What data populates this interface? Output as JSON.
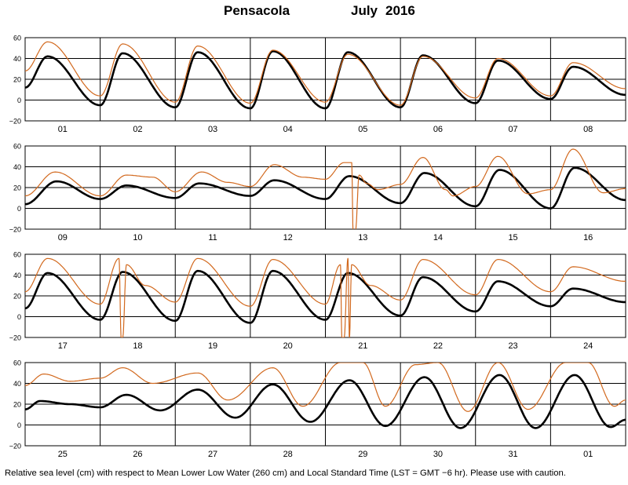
{
  "title": {
    "station": "Pensacola",
    "month": "July",
    "year": "2016"
  },
  "footnote": "Relative sea level (cm) with respect to Mean Lower Low Water (260 cm) and Local Standard Time (LST = GMT −6 hr). Please use with caution.",
  "colors": {
    "observed": "#d2691e",
    "predicted": "#000000",
    "grid": "#000000"
  },
  "chart_data": [
    {
      "type": "line",
      "days": [
        "01",
        "02",
        "03",
        "04",
        "05",
        "06",
        "07",
        "08"
      ],
      "yticks": [
        "60",
        "40",
        "20",
        "0",
        "−20"
      ],
      "ylim": [
        -20,
        60
      ],
      "series": [
        {
          "key": "predicted",
          "x": [
            0,
            0.3,
            1,
            1.3,
            2,
            2.3,
            3,
            3.3,
            4,
            4.3,
            5,
            5.3,
            6,
            6.3,
            7,
            7.3,
            8
          ],
          "values": [
            12,
            42,
            -5,
            45,
            -7,
            46,
            -8,
            47,
            -8,
            46,
            -7,
            43,
            -3,
            38,
            1,
            32,
            5
          ]
        },
        {
          "key": "observed",
          "x": [
            0,
            0.3,
            1,
            1.3,
            2,
            2.3,
            3,
            3.3,
            4,
            4.3,
            5,
            5.3,
            6,
            6.3,
            7,
            7.3,
            8
          ],
          "values": [
            28,
            56,
            4,
            54,
            -2,
            52,
            -3,
            48,
            -2,
            44,
            -5,
            42,
            2,
            40,
            4,
            36,
            11
          ]
        }
      ]
    },
    {
      "type": "line",
      "days": [
        "09",
        "10",
        "11",
        "12",
        "13",
        "14",
        "15",
        "16"
      ],
      "yticks": [
        "60",
        "40",
        "20",
        "0",
        "−20"
      ],
      "ylim": [
        -20,
        60
      ],
      "series": [
        {
          "key": "predicted",
          "x": [
            0,
            0.42,
            1,
            1.35,
            2,
            2.32,
            3,
            3.32,
            4,
            4.32,
            5,
            5.32,
            6,
            6.32,
            7,
            7.32,
            8
          ],
          "values": [
            4,
            26,
            9,
            22,
            10,
            24,
            12,
            27,
            9,
            31,
            5,
            34,
            2,
            37,
            0,
            39,
            8
          ]
        },
        {
          "key": "observed",
          "x": [
            0,
            0.4,
            1,
            1.35,
            1.7,
            2,
            2.35,
            2.7,
            3,
            3.32,
            3.7,
            4,
            4.25,
            4.35,
            4.37,
            4.4,
            4.45,
            4.55,
            4.7,
            5,
            5.3,
            5.6,
            5.7,
            6,
            6.3,
            6.7,
            7,
            7.3,
            7.7,
            8
          ],
          "values": [
            12,
            35,
            12,
            32,
            30,
            16,
            35,
            25,
            21,
            42,
            30,
            28,
            44,
            44,
            -22,
            -22,
            32,
            24,
            18,
            23,
            49,
            18,
            12,
            21,
            50,
            14,
            18,
            57,
            15,
            19
          ]
        }
      ]
    },
    {
      "type": "line",
      "days": [
        "17",
        "18",
        "19",
        "20",
        "21",
        "22",
        "23",
        "24"
      ],
      "yticks": [
        "60",
        "40",
        "20",
        "0",
        "−20"
      ],
      "ylim": [
        -20,
        60
      ],
      "series": [
        {
          "key": "predicted",
          "x": [
            0,
            0.3,
            1,
            1.3,
            2,
            2.3,
            3,
            3.3,
            4,
            4.3,
            5,
            5.3,
            6,
            6.3,
            7,
            7.3,
            8
          ],
          "values": [
            8,
            42,
            -3,
            43,
            -4,
            44,
            -6,
            44,
            -3,
            42,
            1,
            38,
            5,
            34,
            10,
            27,
            14
          ]
        },
        {
          "key": "observed",
          "x": [
            0,
            0.3,
            1,
            1.25,
            1.28,
            1.3,
            1.35,
            1.6,
            2,
            2.3,
            3,
            3.3,
            4,
            4.2,
            4.22,
            4.25,
            4.3,
            4.32,
            4.35,
            4.6,
            5,
            5.3,
            6,
            6.3,
            7,
            7.3,
            8
          ],
          "values": [
            24,
            56,
            12,
            56,
            -20,
            -20,
            50,
            30,
            14,
            56,
            10,
            55,
            12,
            50,
            -20,
            -20,
            56,
            -20,
            50,
            30,
            16,
            55,
            21,
            55,
            24,
            48,
            34
          ]
        }
      ]
    },
    {
      "type": "line",
      "days": [
        "25",
        "26",
        "27",
        "28",
        "29",
        "30",
        "31",
        "01"
      ],
      "yticks": [
        "60",
        "40",
        "20",
        "0",
        "−20"
      ],
      "ylim": [
        -20,
        60
      ],
      "series": [
        {
          "key": "predicted",
          "x": [
            0,
            0.2,
            0.6,
            1,
            1.35,
            1.8,
            2.3,
            2.8,
            3.3,
            3.8,
            4.32,
            4.8,
            5.32,
            5.8,
            6.32,
            6.8,
            7.32,
            7.8,
            8
          ],
          "values": [
            15,
            23,
            20,
            17,
            29,
            14,
            34,
            7,
            39,
            3,
            43,
            -1,
            46,
            -3,
            48,
            -3,
            48,
            -2,
            5
          ]
        },
        {
          "key": "observed",
          "x": [
            0,
            0.25,
            0.6,
            1,
            1.3,
            1.7,
            2.3,
            2.7,
            3.3,
            3.7,
            4.2,
            4.5,
            4.8,
            5.2,
            5.5,
            5.9,
            6.3,
            6.7,
            7.2,
            7.5,
            7.85,
            8
          ],
          "values": [
            38,
            49,
            42,
            45,
            55,
            40,
            50,
            24,
            55,
            18,
            60,
            60,
            18,
            58,
            60,
            13,
            60,
            15,
            60,
            60,
            18,
            24
          ]
        }
      ]
    }
  ]
}
